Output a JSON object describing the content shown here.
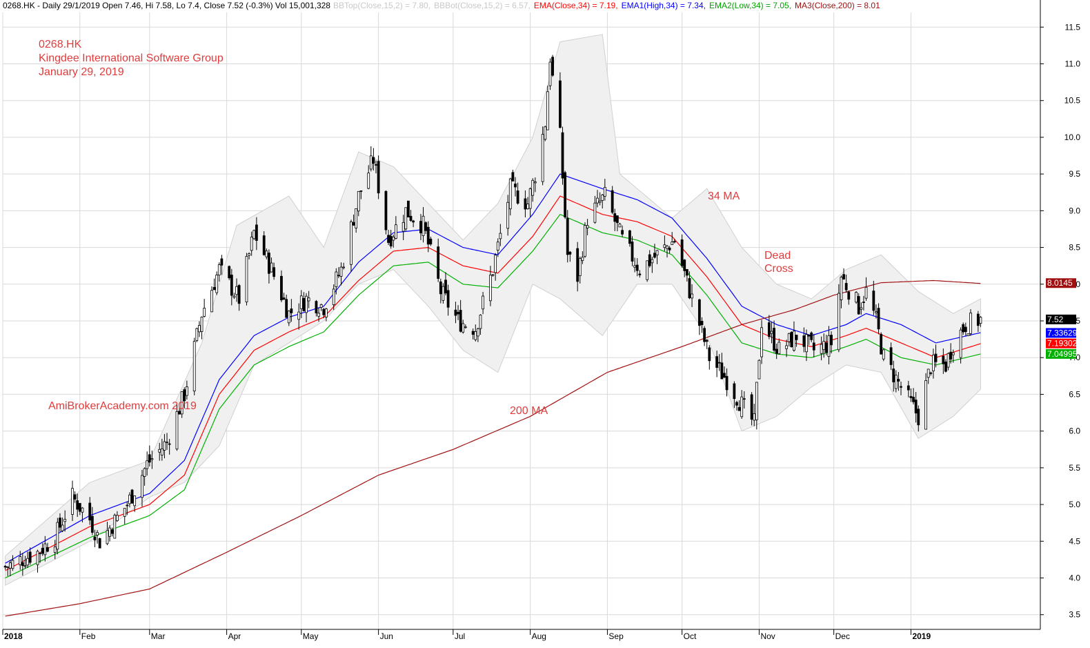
{
  "header": {
    "prefix": "0268.HK - Daily 29/1/2019 Open 7.46, Hi 7.58, Lo 7.4, Close 7.52 (-0.3%) Vol 15,001,328",
    "bbtop": "BBTop(Close,15,2) = 7.80,",
    "bbbot": "BBBot(Close,15,2) = 6.57,",
    "ema": "EMA(Close,34) = 7.19,",
    "ema1": "EMA1(High,34) = 7.34,",
    "ema2": "EMA2(Low,34) = 7.05,",
    "ma3": "MA3(Close,200) = 8.01"
  },
  "annotations": {
    "ticker": "0268.HK",
    "company": "Kingdee International Software Group",
    "date": "January 29, 2019",
    "watermark": "AmiBrokerAcademy.com  2019",
    "ma34": "34 MA",
    "dead": "Dead",
    "cross": "Cross",
    "ma200": "200 MA"
  },
  "colors": {
    "ema_high": "#0000ff",
    "ema_close": "#ff0000",
    "ema_low": "#00b000",
    "ma200": "#a01010",
    "bollinger_fill": "#f0f0f0",
    "annotation": "#e03c3c",
    "grid": "#d9d9d9"
  },
  "chart_data": {
    "type": "candlestick",
    "ylim": [
      3.3,
      11.7
    ],
    "yticks": [
      "3.5",
      "4.0",
      "4.5",
      "5.0",
      "5.5",
      "6.0",
      "6.5",
      "7.0",
      "7.5",
      "8.0",
      "8.5",
      "9.0",
      "9.5",
      "10.0",
      "10.5",
      "11.0",
      "11.5"
    ],
    "xticks": [
      {
        "label": "2018",
        "bold": true
      },
      {
        "label": "Feb",
        "bold": false
      },
      {
        "label": "Mar",
        "bold": false
      },
      {
        "label": "Apr",
        "bold": false
      },
      {
        "label": "May",
        "bold": false
      },
      {
        "label": "Jun",
        "bold": false
      },
      {
        "label": "Jul",
        "bold": false
      },
      {
        "label": "Aug",
        "bold": false
      },
      {
        "label": "Sep",
        "bold": false
      },
      {
        "label": "Oct",
        "bold": false
      },
      {
        "label": "Nov",
        "bold": false
      },
      {
        "label": "Dec",
        "bold": false
      },
      {
        "label": "2019",
        "bold": true
      }
    ],
    "x_range": [
      "2018-01-01",
      "2019-02-22"
    ],
    "close_series": [
      {
        "date": "2018-01-02",
        "close": 4.15
      },
      {
        "date": "2018-01-15",
        "close": 4.35
      },
      {
        "date": "2018-01-22",
        "close": 4.55
      },
      {
        "date": "2018-01-29",
        "close": 5.1
      },
      {
        "date": "2018-02-05",
        "close": 4.8
      },
      {
        "date": "2018-02-09",
        "close": 4.5
      },
      {
        "date": "2018-02-20",
        "close": 5.0
      },
      {
        "date": "2018-02-28",
        "close": 5.55
      },
      {
        "date": "2018-03-08",
        "close": 5.85
      },
      {
        "date": "2018-03-15",
        "close": 6.5
      },
      {
        "date": "2018-03-22",
        "close": 7.6
      },
      {
        "date": "2018-03-29",
        "close": 8.2
      },
      {
        "date": "2018-04-06",
        "close": 7.8
      },
      {
        "date": "2018-04-12",
        "close": 8.7
      },
      {
        "date": "2018-04-19",
        "close": 8.2
      },
      {
        "date": "2018-04-26",
        "close": 7.6
      },
      {
        "date": "2018-05-03",
        "close": 7.8
      },
      {
        "date": "2018-05-10",
        "close": 7.7
      },
      {
        "date": "2018-05-17",
        "close": 8.2
      },
      {
        "date": "2018-05-24",
        "close": 9.2
      },
      {
        "date": "2018-05-30",
        "close": 9.7
      },
      {
        "date": "2018-06-05",
        "close": 8.6
      },
      {
        "date": "2018-06-12",
        "close": 9.0
      },
      {
        "date": "2018-06-19",
        "close": 8.8
      },
      {
        "date": "2018-06-26",
        "close": 7.9
      },
      {
        "date": "2018-07-03",
        "close": 7.5
      },
      {
        "date": "2018-07-10",
        "close": 7.4
      },
      {
        "date": "2018-07-17",
        "close": 8.2
      },
      {
        "date": "2018-07-24",
        "close": 9.3
      },
      {
        "date": "2018-07-31",
        "close": 9.1
      },
      {
        "date": "2018-08-03",
        "close": 9.5
      },
      {
        "date": "2018-08-07",
        "close": 10.2
      },
      {
        "date": "2018-08-09",
        "close": 11.1
      },
      {
        "date": "2018-08-10",
        "close": 10.8
      },
      {
        "date": "2018-08-13",
        "close": 10.0
      },
      {
        "date": "2018-08-16",
        "close": 8.4
      },
      {
        "date": "2018-08-20",
        "close": 8.1
      },
      {
        "date": "2018-08-24",
        "close": 8.9
      },
      {
        "date": "2018-08-31",
        "close": 9.2
      },
      {
        "date": "2018-09-07",
        "close": 8.6
      },
      {
        "date": "2018-09-14",
        "close": 8.2
      },
      {
        "date": "2018-09-21",
        "close": 8.4
      },
      {
        "date": "2018-09-28",
        "close": 8.6
      },
      {
        "date": "2018-10-05",
        "close": 7.8
      },
      {
        "date": "2018-10-12",
        "close": 7.0
      },
      {
        "date": "2018-10-19",
        "close": 6.7
      },
      {
        "date": "2018-10-26",
        "close": 6.3
      },
      {
        "date": "2018-10-30",
        "close": 6.1
      },
      {
        "date": "2018-11-02",
        "close": 7.5
      },
      {
        "date": "2018-11-09",
        "close": 7.1
      },
      {
        "date": "2018-11-16",
        "close": 7.3
      },
      {
        "date": "2018-11-23",
        "close": 7.1
      },
      {
        "date": "2018-11-30",
        "close": 7.2
      },
      {
        "date": "2018-12-04",
        "close": 8.1
      },
      {
        "date": "2018-12-11",
        "close": 7.7
      },
      {
        "date": "2018-12-14",
        "close": 7.9
      },
      {
        "date": "2018-12-18",
        "close": 7.5
      },
      {
        "date": "2018-12-21",
        "close": 7.0
      },
      {
        "date": "2018-12-28",
        "close": 6.6
      },
      {
        "date": "2019-01-04",
        "close": 6.2
      },
      {
        "date": "2019-01-09",
        "close": 6.9
      },
      {
        "date": "2019-01-15",
        "close": 6.9
      },
      {
        "date": "2019-01-18",
        "close": 7.2
      },
      {
        "date": "2019-01-23",
        "close": 7.45
      },
      {
        "date": "2019-01-29",
        "close": 7.52
      }
    ],
    "series": [
      {
        "name": "EMA1(High,34)",
        "values": [
          {
            "date": "2018-01-02",
            "value": 4.2
          },
          {
            "date": "2018-02-05",
            "value": 4.85
          },
          {
            "date": "2018-03-01",
            "value": 5.15
          },
          {
            "date": "2018-03-15",
            "value": 5.6
          },
          {
            "date": "2018-03-29",
            "value": 6.7
          },
          {
            "date": "2018-04-12",
            "value": 7.3
          },
          {
            "date": "2018-04-26",
            "value": 7.55
          },
          {
            "date": "2018-05-10",
            "value": 7.7
          },
          {
            "date": "2018-05-24",
            "value": 8.3
          },
          {
            "date": "2018-06-07",
            "value": 8.7
          },
          {
            "date": "2018-06-21",
            "value": 8.75
          },
          {
            "date": "2018-07-05",
            "value": 8.5
          },
          {
            "date": "2018-07-19",
            "value": 8.4
          },
          {
            "date": "2018-08-02",
            "value": 8.95
          },
          {
            "date": "2018-08-13",
            "value": 9.5
          },
          {
            "date": "2018-08-30",
            "value": 9.3
          },
          {
            "date": "2018-09-13",
            "value": 9.15
          },
          {
            "date": "2018-09-27",
            "value": 8.9
          },
          {
            "date": "2018-10-11",
            "value": 8.35
          },
          {
            "date": "2018-10-25",
            "value": 7.7
          },
          {
            "date": "2018-11-08",
            "value": 7.45
          },
          {
            "date": "2018-11-22",
            "value": 7.3
          },
          {
            "date": "2018-12-06",
            "value": 7.45
          },
          {
            "date": "2018-12-14",
            "value": 7.6
          },
          {
            "date": "2018-12-28",
            "value": 7.45
          },
          {
            "date": "2019-01-11",
            "value": 7.2
          },
          {
            "date": "2019-01-29",
            "value": 7.34
          }
        ]
      },
      {
        "name": "EMA(Close,34)",
        "values": [
          {
            "date": "2018-01-02",
            "value": 4.1
          },
          {
            "date": "2018-02-05",
            "value": 4.7
          },
          {
            "date": "2018-03-01",
            "value": 5.0
          },
          {
            "date": "2018-03-15",
            "value": 5.4
          },
          {
            "date": "2018-03-29",
            "value": 6.5
          },
          {
            "date": "2018-04-12",
            "value": 7.1
          },
          {
            "date": "2018-04-26",
            "value": 7.35
          },
          {
            "date": "2018-05-10",
            "value": 7.55
          },
          {
            "date": "2018-05-24",
            "value": 8.05
          },
          {
            "date": "2018-06-07",
            "value": 8.45
          },
          {
            "date": "2018-06-21",
            "value": 8.5
          },
          {
            "date": "2018-07-05",
            "value": 8.25
          },
          {
            "date": "2018-07-19",
            "value": 8.15
          },
          {
            "date": "2018-08-02",
            "value": 8.65
          },
          {
            "date": "2018-08-13",
            "value": 9.2
          },
          {
            "date": "2018-08-30",
            "value": 8.95
          },
          {
            "date": "2018-09-13",
            "value": 8.85
          },
          {
            "date": "2018-09-27",
            "value": 8.65
          },
          {
            "date": "2018-10-11",
            "value": 8.1
          },
          {
            "date": "2018-10-25",
            "value": 7.45
          },
          {
            "date": "2018-11-08",
            "value": 7.25
          },
          {
            "date": "2018-11-22",
            "value": 7.15
          },
          {
            "date": "2018-12-06",
            "value": 7.3
          },
          {
            "date": "2018-12-14",
            "value": 7.4
          },
          {
            "date": "2018-12-28",
            "value": 7.2
          },
          {
            "date": "2019-01-11",
            "value": 7.0
          },
          {
            "date": "2019-01-29",
            "value": 7.19
          }
        ]
      },
      {
        "name": "EMA2(Low,34)",
        "values": [
          {
            "date": "2018-01-02",
            "value": 4.0
          },
          {
            "date": "2018-02-05",
            "value": 4.55
          },
          {
            "date": "2018-03-01",
            "value": 4.85
          },
          {
            "date": "2018-03-15",
            "value": 5.2
          },
          {
            "date": "2018-03-29",
            "value": 6.3
          },
          {
            "date": "2018-04-12",
            "value": 6.9
          },
          {
            "date": "2018-04-26",
            "value": 7.15
          },
          {
            "date": "2018-05-10",
            "value": 7.35
          },
          {
            "date": "2018-05-24",
            "value": 7.85
          },
          {
            "date": "2018-06-07",
            "value": 8.25
          },
          {
            "date": "2018-06-21",
            "value": 8.3
          },
          {
            "date": "2018-07-05",
            "value": 8.0
          },
          {
            "date": "2018-07-19",
            "value": 7.95
          },
          {
            "date": "2018-08-02",
            "value": 8.45
          },
          {
            "date": "2018-08-13",
            "value": 8.95
          },
          {
            "date": "2018-08-30",
            "value": 8.7
          },
          {
            "date": "2018-09-13",
            "value": 8.6
          },
          {
            "date": "2018-09-27",
            "value": 8.4
          },
          {
            "date": "2018-10-11",
            "value": 7.85
          },
          {
            "date": "2018-10-25",
            "value": 7.2
          },
          {
            "date": "2018-11-08",
            "value": 7.05
          },
          {
            "date": "2018-11-22",
            "value": 7.0
          },
          {
            "date": "2018-12-06",
            "value": 7.15
          },
          {
            "date": "2018-12-14",
            "value": 7.25
          },
          {
            "date": "2018-12-28",
            "value": 7.0
          },
          {
            "date": "2019-01-11",
            "value": 6.9
          },
          {
            "date": "2019-01-29",
            "value": 7.05
          }
        ]
      },
      {
        "name": "MA3(Close,200)",
        "values": [
          {
            "date": "2018-01-02",
            "value": 3.48
          },
          {
            "date": "2018-02-01",
            "value": 3.65
          },
          {
            "date": "2018-03-01",
            "value": 3.85
          },
          {
            "date": "2018-04-01",
            "value": 4.35
          },
          {
            "date": "2018-05-01",
            "value": 4.85
          },
          {
            "date": "2018-06-01",
            "value": 5.4
          },
          {
            "date": "2018-07-01",
            "value": 5.75
          },
          {
            "date": "2018-08-01",
            "value": 6.2
          },
          {
            "date": "2018-09-01",
            "value": 6.8
          },
          {
            "date": "2018-10-01",
            "value": 7.15
          },
          {
            "date": "2018-10-25",
            "value": 7.45
          },
          {
            "date": "2018-11-15",
            "value": 7.65
          },
          {
            "date": "2018-12-01",
            "value": 7.85
          },
          {
            "date": "2018-12-20",
            "value": 8.02
          },
          {
            "date": "2019-01-10",
            "value": 8.05
          },
          {
            "date": "2019-01-29",
            "value": 8.01
          }
        ]
      }
    ],
    "bollinger": {
      "top": [
        {
          "date": "2018-01-02",
          "value": 4.3
        },
        {
          "date": "2018-02-05",
          "value": 5.3
        },
        {
          "date": "2018-03-01",
          "value": 5.6
        },
        {
          "date": "2018-03-22",
          "value": 7.2
        },
        {
          "date": "2018-04-05",
          "value": 8.8
        },
        {
          "date": "2018-04-26",
          "value": 9.2
        },
        {
          "date": "2018-05-10",
          "value": 8.5
        },
        {
          "date": "2018-05-24",
          "value": 9.8
        },
        {
          "date": "2018-06-07",
          "value": 9.6
        },
        {
          "date": "2018-06-21",
          "value": 9.1
        },
        {
          "date": "2018-07-05",
          "value": 8.6
        },
        {
          "date": "2018-07-19",
          "value": 9.1
        },
        {
          "date": "2018-08-02",
          "value": 10.0
        },
        {
          "date": "2018-08-13",
          "value": 11.3
        },
        {
          "date": "2018-08-30",
          "value": 11.4
        },
        {
          "date": "2018-09-06",
          "value": 9.5
        },
        {
          "date": "2018-09-27",
          "value": 8.9
        },
        {
          "date": "2018-10-11",
          "value": 9.3
        },
        {
          "date": "2018-10-25",
          "value": 8.5
        },
        {
          "date": "2018-11-08",
          "value": 8.0
        },
        {
          "date": "2018-11-22",
          "value": 7.8
        },
        {
          "date": "2018-12-06",
          "value": 8.2
        },
        {
          "date": "2018-12-20",
          "value": 8.4
        },
        {
          "date": "2019-01-04",
          "value": 7.9
        },
        {
          "date": "2019-01-18",
          "value": 7.6
        },
        {
          "date": "2019-01-29",
          "value": 7.8
        }
      ],
      "bottom": [
        {
          "date": "2018-01-02",
          "value": 3.9
        },
        {
          "date": "2018-02-05",
          "value": 4.5
        },
        {
          "date": "2018-03-01",
          "value": 5.1
        },
        {
          "date": "2018-03-15",
          "value": 5.3
        },
        {
          "date": "2018-03-29",
          "value": 5.8
        },
        {
          "date": "2018-04-12",
          "value": 6.9
        },
        {
          "date": "2018-04-26",
          "value": 7.2
        },
        {
          "date": "2018-05-10",
          "value": 7.5
        },
        {
          "date": "2018-05-24",
          "value": 8.0
        },
        {
          "date": "2018-06-07",
          "value": 8.2
        },
        {
          "date": "2018-06-21",
          "value": 7.7
        },
        {
          "date": "2018-07-05",
          "value": 7.1
        },
        {
          "date": "2018-07-19",
          "value": 6.8
        },
        {
          "date": "2018-08-02",
          "value": 8.0
        },
        {
          "date": "2018-08-13",
          "value": 7.8
        },
        {
          "date": "2018-08-30",
          "value": 7.3
        },
        {
          "date": "2018-09-13",
          "value": 8.0
        },
        {
          "date": "2018-09-27",
          "value": 8.0
        },
        {
          "date": "2018-10-11",
          "value": 7.3
        },
        {
          "date": "2018-10-25",
          "value": 6.0
        },
        {
          "date": "2018-11-08",
          "value": 6.2
        },
        {
          "date": "2018-11-22",
          "value": 6.6
        },
        {
          "date": "2018-12-06",
          "value": 6.9
        },
        {
          "date": "2018-12-20",
          "value": 6.8
        },
        {
          "date": "2019-01-04",
          "value": 5.9
        },
        {
          "date": "2019-01-18",
          "value": 6.2
        },
        {
          "date": "2019-01-29",
          "value": 6.57
        }
      ]
    },
    "value_labels": [
      {
        "text": "8.0145",
        "value": 8.0145,
        "bg": "#a01010",
        "fg": "#ffffff"
      },
      {
        "text": "7.52",
        "value": 7.52,
        "bg": "#000000",
        "fg": "#ffffff"
      },
      {
        "text": "7.33629",
        "value": 7.33629,
        "bg": "#0000ff",
        "fg": "#ffffff"
      },
      {
        "text": "7.19302",
        "value": 7.19302,
        "bg": "#ff0000",
        "fg": "#ffffff"
      },
      {
        "text": "7.04995",
        "value": 7.04995,
        "bg": "#00b000",
        "fg": "#ffffff"
      }
    ]
  }
}
